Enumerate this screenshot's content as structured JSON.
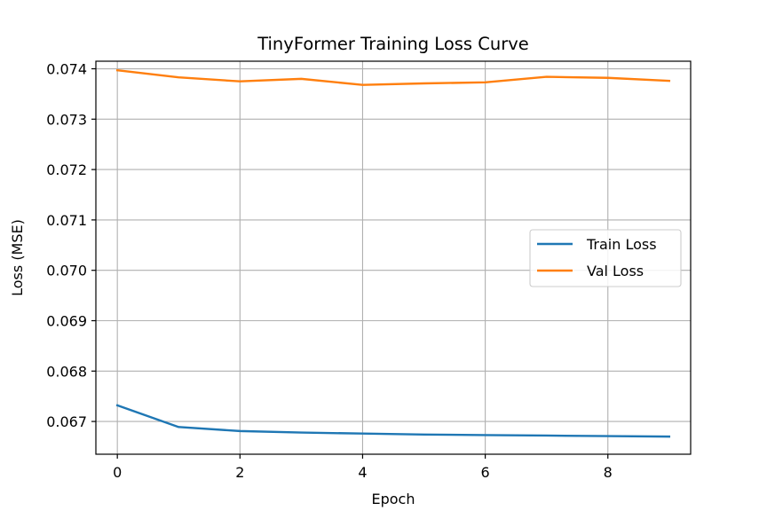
{
  "chart_data": {
    "type": "line",
    "title": "TinyFormer Training Loss Curve",
    "xlabel": "Epoch",
    "ylabel": "Loss (MSE)",
    "x": [
      0,
      1,
      2,
      3,
      4,
      5,
      6,
      7,
      8,
      9
    ],
    "xlim": [
      -0.35,
      9.35
    ],
    "ylim": [
      0.06635,
      0.07415
    ],
    "xticks": [
      0,
      2,
      4,
      6,
      8
    ],
    "xtick_labels": [
      "0",
      "2",
      "4",
      "6",
      "8"
    ],
    "yticks": [
      0.067,
      0.068,
      0.069,
      0.07,
      0.071,
      0.072,
      0.073,
      0.074
    ],
    "ytick_labels": [
      "0.067",
      "0.068",
      "0.069",
      "0.070",
      "0.071",
      "0.072",
      "0.073",
      "0.074"
    ],
    "grid": true,
    "legend_position": "center-right",
    "series": [
      {
        "name": "Train Loss",
        "color": "#1f77b4",
        "values": [
          0.06732,
          0.06689,
          0.06681,
          0.06678,
          0.06676,
          0.06674,
          0.06673,
          0.06672,
          0.06671,
          0.0667
        ]
      },
      {
        "name": "Val Loss",
        "color": "#ff7f0e",
        "values": [
          0.07397,
          0.07383,
          0.07375,
          0.0738,
          0.07368,
          0.07371,
          0.07373,
          0.07384,
          0.07382,
          0.07376
        ]
      }
    ]
  }
}
